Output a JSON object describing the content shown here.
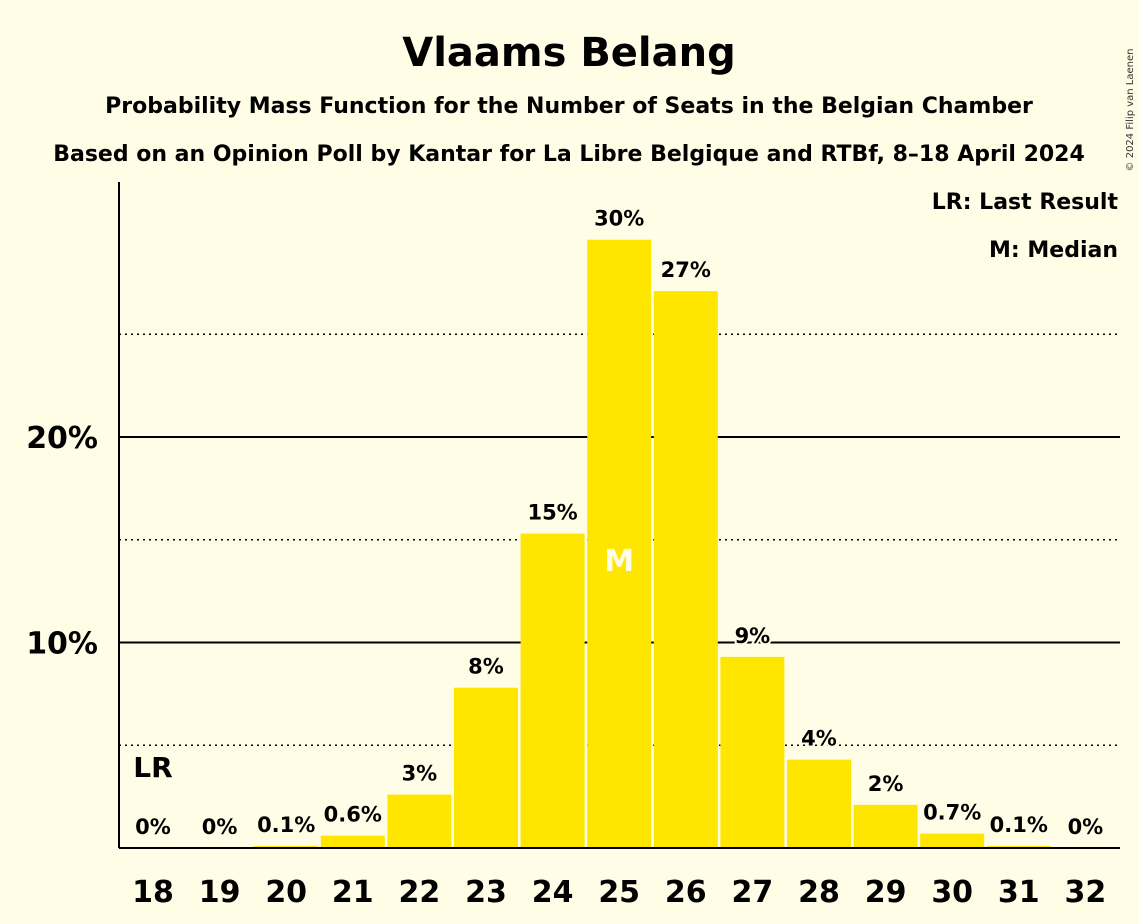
{
  "chart_data": {
    "type": "bar",
    "title": "Vlaams Belang",
    "subtitle": "Probability Mass Function for the Number of Seats in the Belgian Chamber",
    "source": "Based on an Opinion Poll by Kantar for La Libre Belgique and RTBf, 8–18 April 2024",
    "categories": [
      "18",
      "19",
      "20",
      "21",
      "22",
      "23",
      "24",
      "25",
      "26",
      "27",
      "28",
      "29",
      "30",
      "31",
      "32"
    ],
    "values": [
      0,
      0,
      0.1,
      0.6,
      2.6,
      7.8,
      15.3,
      29.6,
      27.1,
      9.3,
      4.3,
      2.1,
      0.7,
      0.1,
      0
    ],
    "labels": [
      "0%",
      "0%",
      "0.1%",
      "0.6%",
      "3%",
      "8%",
      "15%",
      "30%",
      "27%",
      "9%",
      "4%",
      "2%",
      "0.7%",
      "0.1%",
      "0%"
    ],
    "xlabel": "",
    "ylabel": "",
    "ylim": [
      0,
      32
    ],
    "yticks": [
      {
        "value": 10,
        "label": "10%"
      },
      {
        "value": 20,
        "label": "20%"
      }
    ],
    "minor_gridlines": [
      5,
      15,
      25
    ],
    "last_result_category": "18",
    "last_result_marker": "LR",
    "median_category": "25",
    "median_marker": "M",
    "legend": [
      "LR: Last Result",
      "M: Median"
    ],
    "legend_position": "top-right",
    "bar_color": "#FFE600",
    "background_color": "#FFFDE6"
  },
  "copyright": "© 2024 Filip van Laenen"
}
